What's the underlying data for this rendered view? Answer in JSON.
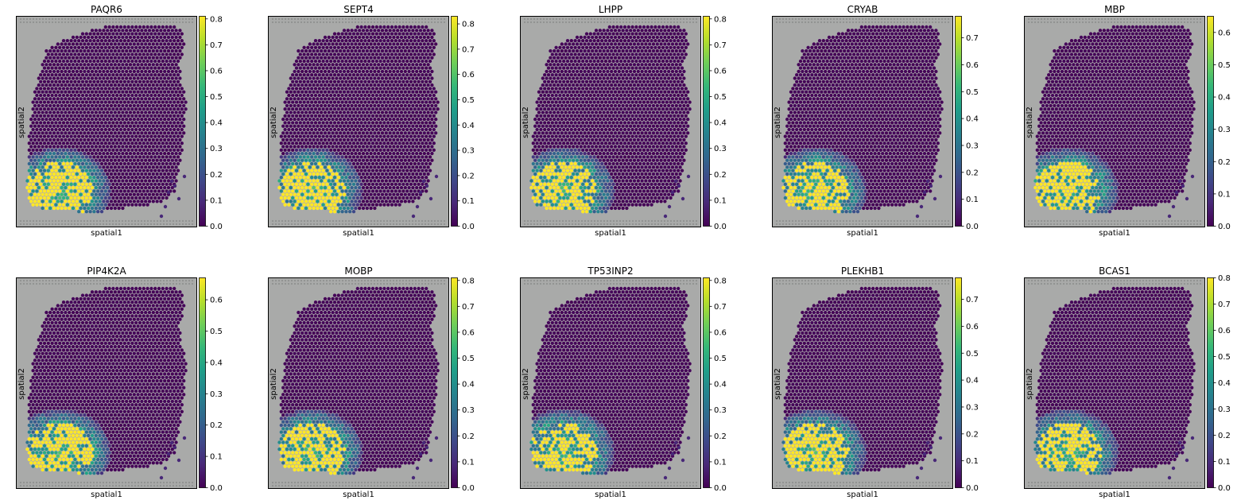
{
  "chart_data": [
    {
      "type": "heatmap",
      "title": "PAQR6",
      "xlabel": "spatial1",
      "ylabel": "spatial2",
      "clim": [
        0,
        0.81
      ],
      "ticks": [
        "0.0",
        "0.1",
        "0.2",
        "0.3",
        "0.4",
        "0.5",
        "0.6",
        "0.7",
        "0.8"
      ]
    },
    {
      "type": "heatmap",
      "title": "SEPT4",
      "xlabel": "spatial1",
      "ylabel": "spatial2",
      "clim": [
        0,
        0.83
      ],
      "ticks": [
        "0.0",
        "0.1",
        "0.2",
        "0.3",
        "0.4",
        "0.5",
        "0.6",
        "0.7",
        "0.8"
      ]
    },
    {
      "type": "heatmap",
      "title": "LHPP",
      "xlabel": "spatial1",
      "ylabel": "spatial2",
      "clim": [
        0,
        0.81
      ],
      "ticks": [
        "0.0",
        "0.1",
        "0.2",
        "0.3",
        "0.4",
        "0.5",
        "0.6",
        "0.7",
        "0.8"
      ]
    },
    {
      "type": "heatmap",
      "title": "CRYAB",
      "xlabel": "spatial1",
      "ylabel": "spatial2",
      "clim": [
        0,
        0.78
      ],
      "ticks": [
        "0.0",
        "0.1",
        "0.2",
        "0.3",
        "0.4",
        "0.5",
        "0.6",
        "0.7"
      ]
    },
    {
      "type": "heatmap",
      "title": "MBP",
      "xlabel": "spatial1",
      "ylabel": "spatial2",
      "clim": [
        0,
        0.65
      ],
      "ticks": [
        "0.0",
        "0.1",
        "0.2",
        "0.3",
        "0.4",
        "0.5",
        "0.6"
      ]
    },
    {
      "type": "heatmap",
      "title": "PIP4K2A",
      "xlabel": "spatial1",
      "ylabel": "spatial2",
      "clim": [
        0,
        0.67
      ],
      "ticks": [
        "0.0",
        "0.1",
        "0.2",
        "0.3",
        "0.4",
        "0.5",
        "0.6"
      ]
    },
    {
      "type": "heatmap",
      "title": "MOBP",
      "xlabel": "spatial1",
      "ylabel": "spatial2",
      "clim": [
        0,
        0.81
      ],
      "ticks": [
        "0.0",
        "0.1",
        "0.2",
        "0.3",
        "0.4",
        "0.5",
        "0.6",
        "0.7",
        "0.8"
      ]
    },
    {
      "type": "heatmap",
      "title": "TP53INP2",
      "xlabel": "spatial1",
      "ylabel": "spatial2",
      "clim": [
        0,
        0.81
      ],
      "ticks": [
        "0.0",
        "0.1",
        "0.2",
        "0.3",
        "0.4",
        "0.5",
        "0.6",
        "0.7",
        "0.8"
      ]
    },
    {
      "type": "heatmap",
      "title": "PLEKHB1",
      "xlabel": "spatial1",
      "ylabel": "spatial2",
      "clim": [
        0,
        0.78
      ],
      "ticks": [
        "0.0",
        "0.1",
        "0.2",
        "0.3",
        "0.4",
        "0.5",
        "0.6",
        "0.7"
      ]
    },
    {
      "type": "heatmap",
      "title": "BCAS1",
      "xlabel": "spatial1",
      "ylabel": "spatial2",
      "clim": [
        0,
        0.8
      ],
      "ticks": [
        "0.0",
        "0.1",
        "0.2",
        "0.3",
        "0.4",
        "0.5",
        "0.6",
        "0.7",
        "0.8"
      ]
    }
  ],
  "colormap": "viridis",
  "colors": {
    "tissue_background": "#a9aaa9",
    "tissue_low": "#48175f",
    "highlight": "#fde725"
  }
}
